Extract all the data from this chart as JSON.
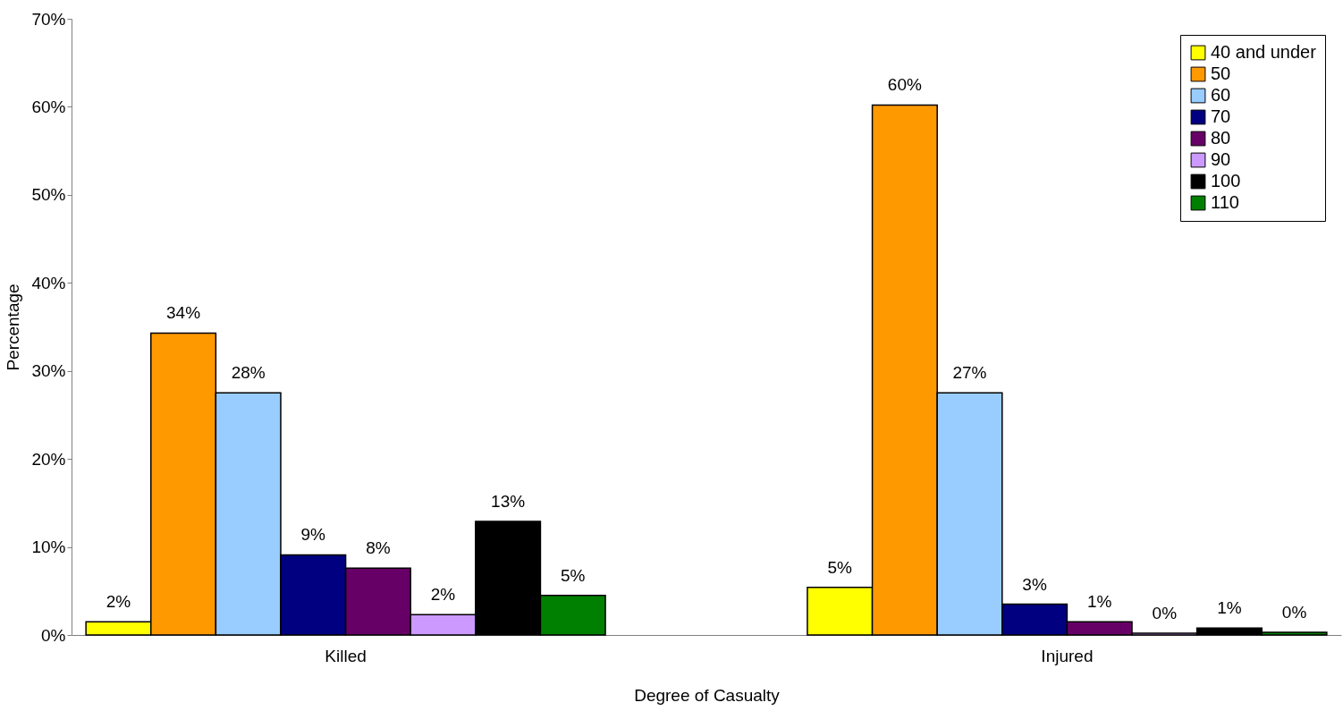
{
  "chart_data": {
    "type": "bar",
    "xlabel": "Degree of Casualty",
    "ylabel": "Percentage",
    "categories": [
      "Killed",
      "Injured"
    ],
    "series": [
      {
        "name": "40 and under",
        "color": "#ffff00",
        "values": [
          1.5,
          5.4
        ],
        "value_labels": [
          "2%",
          "5%"
        ]
      },
      {
        "name": "50",
        "color": "#ff9900",
        "values": [
          34.3,
          60.2
        ],
        "value_labels": [
          "34%",
          "60%"
        ]
      },
      {
        "name": "60",
        "color": "#99ccff",
        "values": [
          27.5,
          27.5
        ],
        "value_labels": [
          "28%",
          "27%"
        ]
      },
      {
        "name": "70",
        "color": "#000080",
        "values": [
          9.1,
          3.5
        ],
        "value_labels": [
          "9%",
          "3%"
        ]
      },
      {
        "name": "80",
        "color": "#660066",
        "values": [
          7.6,
          1.5
        ],
        "value_labels": [
          "8%",
          "1%"
        ]
      },
      {
        "name": "90",
        "color": "#cc99ff",
        "values": [
          2.3,
          0.2
        ],
        "value_labels": [
          "2%",
          "0%"
        ]
      },
      {
        "name": "100",
        "color": "#000000",
        "values": [
          12.9,
          0.8
        ],
        "value_labels": [
          "13%",
          "1%"
        ]
      },
      {
        "name": "110",
        "color": "#008000",
        "values": [
          4.5,
          0.3
        ],
        "value_labels": [
          "5%",
          "0%"
        ]
      }
    ],
    "ylim": [
      0,
      70
    ],
    "yticks": [
      {
        "value": 0,
        "label": "0%"
      },
      {
        "value": 10,
        "label": "10%"
      },
      {
        "value": 20,
        "label": "20%"
      },
      {
        "value": 30,
        "label": "30%"
      },
      {
        "value": 40,
        "label": "40%"
      },
      {
        "value": 50,
        "label": "50%"
      },
      {
        "value": 60,
        "label": "60%"
      },
      {
        "value": 70,
        "label": "70%"
      }
    ],
    "grid": false,
    "legend": "top right"
  }
}
